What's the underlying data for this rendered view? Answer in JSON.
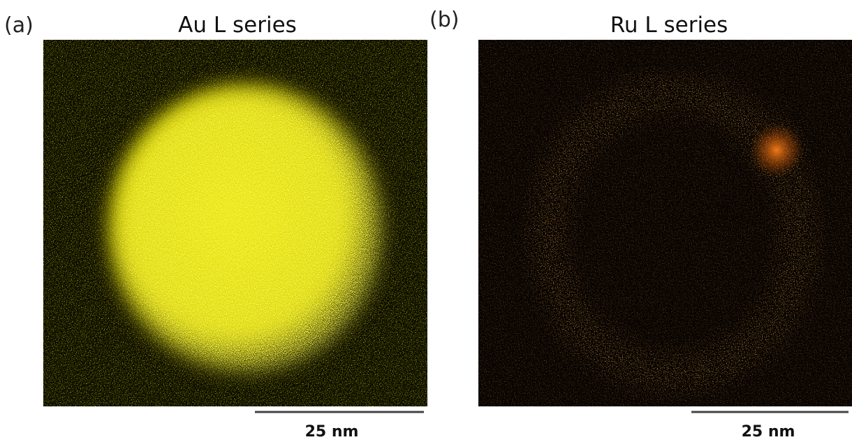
{
  "panels": [
    {
      "label": "(a)",
      "title": "Au L series",
      "scale_bar": "25 nm"
    },
    {
      "label": "(b)",
      "title": "Ru L series",
      "scale_bar": "25 nm"
    }
  ]
}
